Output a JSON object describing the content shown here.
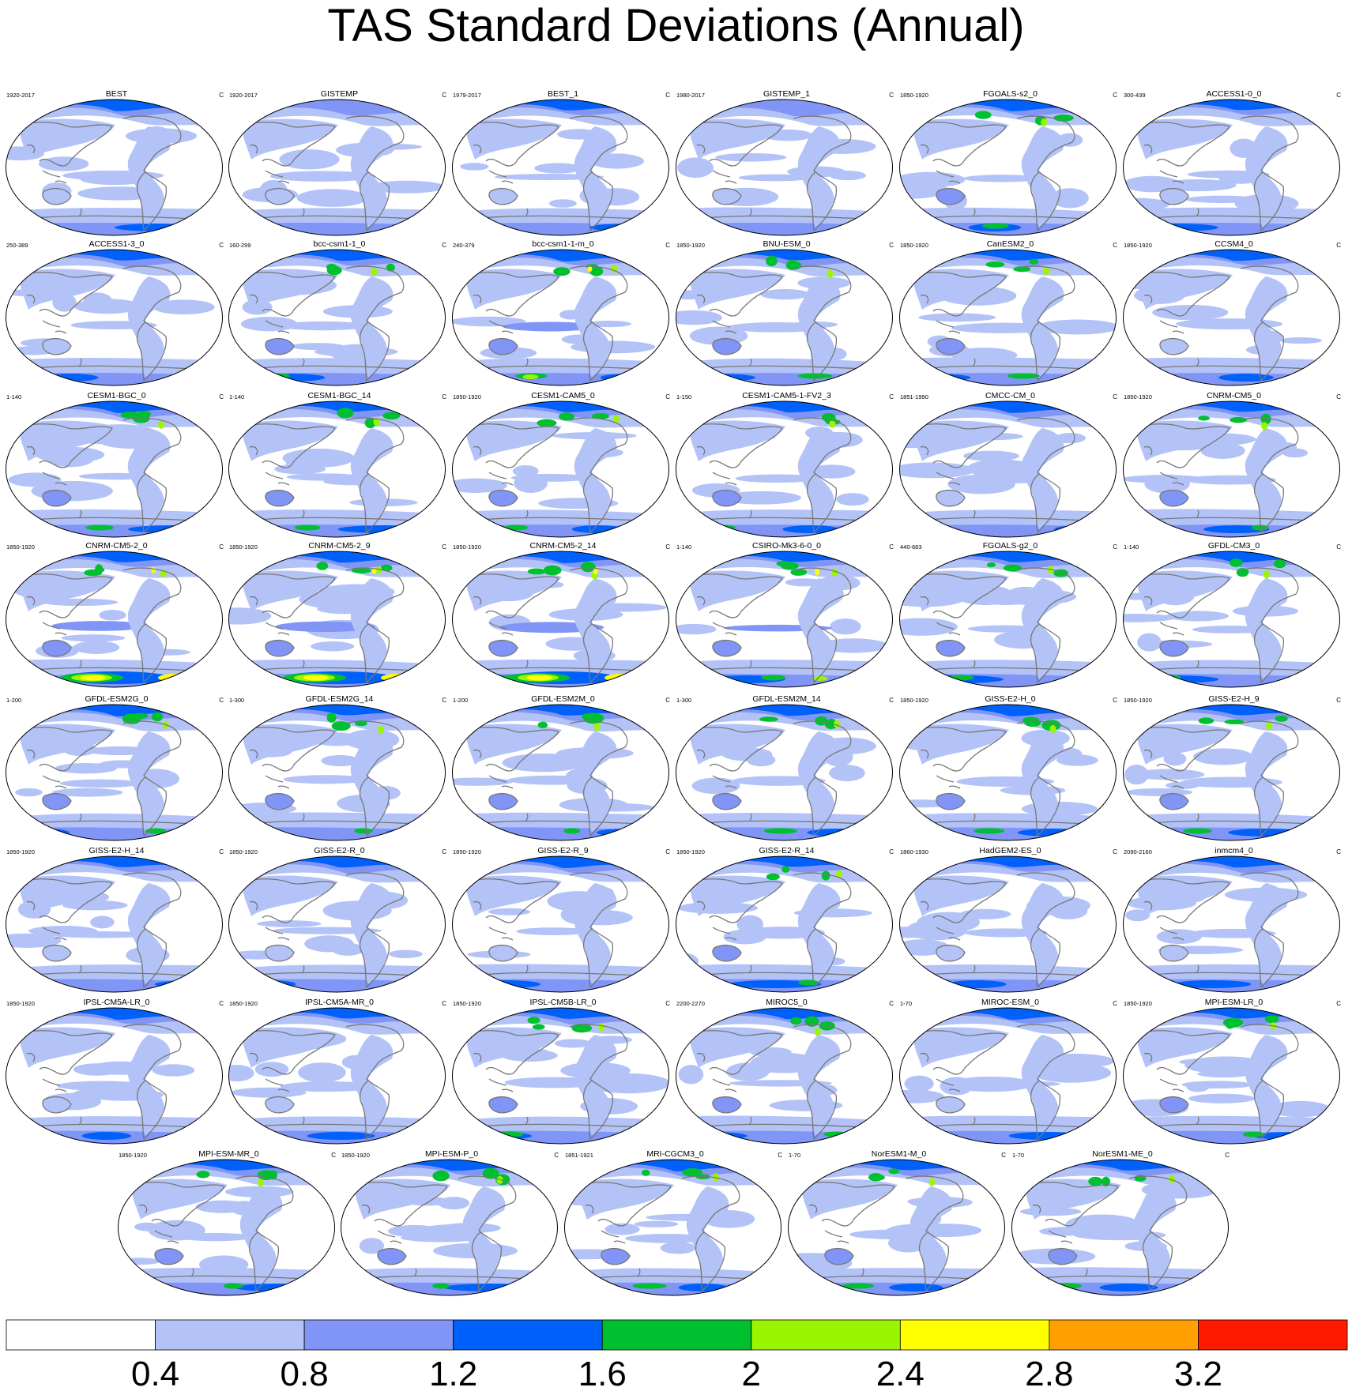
{
  "title": "TAS Standard Deviations (Annual)",
  "chart_data": {
    "type": "map-panel-grid",
    "title": "TAS Standard Deviations (Annual)",
    "units": "C",
    "panels": [
      {
        "name": "BEST",
        "period": "1920-2017",
        "units": "C",
        "intensity": 1
      },
      {
        "name": "GISTEMP",
        "period": "1920-2017",
        "units": "C",
        "intensity": 0
      },
      {
        "name": "BEST_1",
        "period": "1979-2017",
        "units": "C",
        "intensity": 1
      },
      {
        "name": "GISTEMP_1",
        "period": "1980-2017",
        "units": "C",
        "intensity": 0
      },
      {
        "name": "FGOALS-s2_0",
        "period": "1850-1920",
        "units": "C",
        "intensity": 2
      },
      {
        "name": "ACCESS1-0_0",
        "period": "300-439",
        "units": "C",
        "intensity": 1
      },
      {
        "name": "ACCESS1-3_0",
        "period": "250-389",
        "units": "C",
        "intensity": 1
      },
      {
        "name": "bcc-csm1-1_0",
        "period": "160-299",
        "units": "C",
        "intensity": 2
      },
      {
        "name": "bcc-csm1-1-m_0",
        "period": "240-379",
        "units": "C",
        "intensity": 3
      },
      {
        "name": "BNU-ESM_0",
        "period": "1850-1920",
        "units": "C",
        "intensity": 2
      },
      {
        "name": "CanESM2_0",
        "period": "1850-1920",
        "units": "C",
        "intensity": 2
      },
      {
        "name": "CCSM4_0",
        "period": "1850-1920",
        "units": "C",
        "intensity": 1
      },
      {
        "name": "CESM1-BGC_0",
        "period": "1-140",
        "units": "C",
        "intensity": 2
      },
      {
        "name": "CESM1-BGC_14",
        "period": "1-140",
        "units": "C",
        "intensity": 2
      },
      {
        "name": "CESM1-CAM5_0",
        "period": "1850-1920",
        "units": "C",
        "intensity": 2
      },
      {
        "name": "CESM1-CAM5-1-FV2_3",
        "period": "1-150",
        "units": "C",
        "intensity": 2
      },
      {
        "name": "CMCC-CM_0",
        "period": "1851-1990",
        "units": "C",
        "intensity": 1
      },
      {
        "name": "CNRM-CM5_0",
        "period": "1850-1920",
        "units": "C",
        "intensity": 2
      },
      {
        "name": "CNRM-CM5-2_0",
        "period": "1850-1920",
        "units": "C",
        "intensity": 4
      },
      {
        "name": "CNRM-CM5-2_9",
        "period": "1850-1920",
        "units": "C",
        "intensity": 4
      },
      {
        "name": "CNRM-CM5-2_14",
        "period": "1850-1920",
        "units": "C",
        "intensity": 4
      },
      {
        "name": "CSIRO-Mk3-6-0_0",
        "period": "1-140",
        "units": "C",
        "intensity": 3
      },
      {
        "name": "FGOALS-g2_0",
        "period": "440-683",
        "units": "C",
        "intensity": 2
      },
      {
        "name": "GFDL-CM3_0",
        "period": "1-140",
        "units": "C",
        "intensity": 2
      },
      {
        "name": "GFDL-ESM2G_0",
        "period": "1-200",
        "units": "C",
        "intensity": 2
      },
      {
        "name": "GFDL-ESM2G_14",
        "period": "1-300",
        "units": "C",
        "intensity": 2
      },
      {
        "name": "GFDL-ESM2M_0",
        "period": "1-200",
        "units": "C",
        "intensity": 2
      },
      {
        "name": "GFDL-ESM2M_14",
        "period": "1-300",
        "units": "C",
        "intensity": 2
      },
      {
        "name": "GISS-E2-H_0",
        "period": "1850-1920",
        "units": "C",
        "intensity": 2
      },
      {
        "name": "GISS-E2-H_9",
        "period": "1850-1920",
        "units": "C",
        "intensity": 2
      },
      {
        "name": "GISS-E2-H_14",
        "period": "1850-1920",
        "units": "C",
        "intensity": 1
      },
      {
        "name": "GISS-E2-R_0",
        "period": "1850-1920",
        "units": "C",
        "intensity": 1
      },
      {
        "name": "GISS-E2-R_9",
        "period": "1850-1920",
        "units": "C",
        "intensity": 1
      },
      {
        "name": "GISS-E2-R_14",
        "period": "1850-1920",
        "units": "C",
        "intensity": 2
      },
      {
        "name": "HadGEM2-ES_0",
        "period": "1860-1930",
        "units": "C",
        "intensity": 1
      },
      {
        "name": "inmcm4_0",
        "period": "2090-2160",
        "units": "C",
        "intensity": 1
      },
      {
        "name": "IPSL-CM5A-LR_0",
        "period": "1850-1920",
        "units": "C",
        "intensity": 1
      },
      {
        "name": "IPSL-CM5A-MR_0",
        "period": "1850-1920",
        "units": "C",
        "intensity": 1
      },
      {
        "name": "IPSL-CM5B-LR_0",
        "period": "1850-1920",
        "units": "C",
        "intensity": 2
      },
      {
        "name": "MIROC5_0",
        "period": "2200-2270",
        "units": "C",
        "intensity": 2
      },
      {
        "name": "MIROC-ESM_0",
        "period": "1-70",
        "units": "C",
        "intensity": 1
      },
      {
        "name": "MPI-ESM-LR_0",
        "period": "1850-1920",
        "units": "C",
        "intensity": 2
      },
      {
        "name": "MPI-ESM-MR_0",
        "period": "1850-1920",
        "units": "C",
        "intensity": 2
      },
      {
        "name": "MPI-ESM-P_0",
        "period": "1850-1920",
        "units": "C",
        "intensity": 2
      },
      {
        "name": "MRI-CGCM3_0",
        "period": "1851-1921",
        "units": "C",
        "intensity": 2
      },
      {
        "name": "NorESM1-M_0",
        "period": "1-70",
        "units": "C",
        "intensity": 2
      },
      {
        "name": "NorESM1-ME_0",
        "period": "1-70",
        "units": "C",
        "intensity": 2
      }
    ],
    "colorbar": {
      "levels": [
        0.4,
        0.8,
        1.2,
        1.6,
        2,
        2.4,
        2.8,
        3.2
      ],
      "tick_labels": [
        "0.4",
        "0.8",
        "1.2",
        "1.6",
        "2",
        "2.4",
        "2.8",
        "3.2"
      ],
      "colors": [
        "#ffffff",
        "#b3c3f7",
        "#8095f5",
        "#0060fa",
        "#00c030",
        "#9af500",
        "#ffff00",
        "#ffa000",
        "#ff1a00"
      ]
    }
  },
  "palette": {
    "land_outline": "#777777",
    "map_border": "#000000"
  }
}
